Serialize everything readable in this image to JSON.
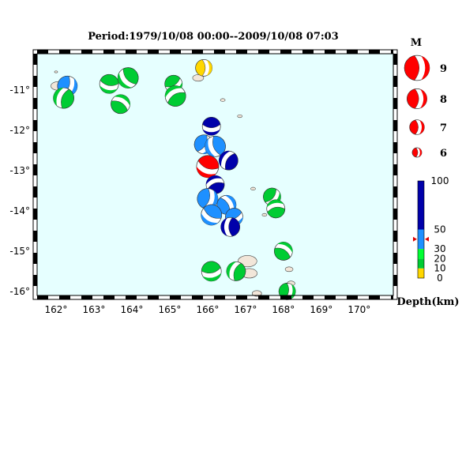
{
  "title": "Period:1979/10/08 00:00--2009/10/08 07:03",
  "map": {
    "lon_range": [
      161.5,
      170.9
    ],
    "lat_range": [
      -16.1,
      -10.1
    ],
    "ocean_color": "#e6ffff",
    "land_color": "#f2e6d9",
    "lon_ticks": [
      {
        "value": 162,
        "label": "162°"
      },
      {
        "value": 163,
        "label": "163°"
      },
      {
        "value": 164,
        "label": "164°"
      },
      {
        "value": 165,
        "label": "165°"
      },
      {
        "value": 166,
        "label": "166°"
      },
      {
        "value": 167,
        "label": "167°"
      },
      {
        "value": 168,
        "label": "168°"
      },
      {
        "value": 169,
        "label": "169°"
      },
      {
        "value": 170,
        "label": "170°"
      }
    ],
    "lat_ticks": [
      {
        "value": -11,
        "label": "-11°"
      },
      {
        "value": -12,
        "label": "-12°"
      },
      {
        "value": -13,
        "label": "-13°"
      },
      {
        "value": -14,
        "label": "-14°"
      },
      {
        "value": -15,
        "label": "-15°"
      },
      {
        "value": -16,
        "label": "-16°"
      }
    ]
  },
  "depth_colors": {
    "0-10": "#ffd700",
    "10-20": "#00cc33",
    "20-30": "#00ff33",
    "30-50": "#1e90ff",
    "50-100": "#0000aa"
  },
  "events": [
    {
      "lon": 162.3,
      "lat": -10.9,
      "mag": 6.7,
      "color": "#1e90ff",
      "rot": 20
    },
    {
      "lon": 162.2,
      "lat": -11.2,
      "mag": 6.8,
      "color": "#00cc33",
      "rot": 200
    },
    {
      "lon": 163.4,
      "lat": -10.85,
      "mag": 6.6,
      "color": "#00cc33",
      "rot": 100
    },
    {
      "lon": 163.9,
      "lat": -10.7,
      "mag": 6.8,
      "color": "#00cc33",
      "rot": 140
    },
    {
      "lon": 163.7,
      "lat": -11.35,
      "mag": 6.6,
      "color": "#00cc33",
      "rot": 300
    },
    {
      "lon": 165.1,
      "lat": -10.85,
      "mag": 6.4,
      "color": "#00cc33",
      "rot": 60
    },
    {
      "lon": 165.15,
      "lat": -11.15,
      "mag": 6.8,
      "color": "#00cc33",
      "rot": 240
    },
    {
      "lon": 165.9,
      "lat": -10.45,
      "mag": 6.3,
      "color": "#ffd700",
      "rot": 0
    },
    {
      "lon": 166.1,
      "lat": -11.9,
      "mag": 6.5,
      "color": "#0000aa",
      "rot": 90
    },
    {
      "lon": 165.9,
      "lat": -12.35,
      "mag": 6.6,
      "color": "#1e90ff",
      "rot": 30
    },
    {
      "lon": 166.2,
      "lat": -12.4,
      "mag": 6.8,
      "color": "#1e90ff",
      "rot": 160
    },
    {
      "lon": 166.55,
      "lat": -12.75,
      "mag": 6.6,
      "color": "#0000aa",
      "rot": 210
    },
    {
      "lon": 166.0,
      "lat": -12.9,
      "mag": 7.0,
      "color": "#ff0000",
      "rot": 110
    },
    {
      "lon": 166.2,
      "lat": -13.35,
      "mag": 6.5,
      "color": "#0000aa",
      "rot": 250
    },
    {
      "lon": 166.0,
      "lat": -13.7,
      "mag": 6.8,
      "color": "#1e90ff",
      "rot": 15
    },
    {
      "lon": 166.5,
      "lat": -13.85,
      "mag": 6.6,
      "color": "#1e90ff",
      "rot": 330
    },
    {
      "lon": 166.1,
      "lat": -14.1,
      "mag": 6.8,
      "color": "#1e90ff",
      "rot": 120
    },
    {
      "lon": 166.7,
      "lat": -14.15,
      "mag": 6.4,
      "color": "#1e90ff",
      "rot": 70
    },
    {
      "lon": 166.6,
      "lat": -14.4,
      "mag": 6.6,
      "color": "#0000aa",
      "rot": 180
    },
    {
      "lon": 167.7,
      "lat": -13.65,
      "mag": 6.4,
      "color": "#00cc33",
      "rot": 40
    },
    {
      "lon": 167.8,
      "lat": -13.95,
      "mag": 6.5,
      "color": "#00cc33",
      "rot": 260
    },
    {
      "lon": 168.0,
      "lat": -15.0,
      "mag": 6.5,
      "color": "#00cc33",
      "rot": 300
    },
    {
      "lon": 166.1,
      "lat": -15.5,
      "mag": 6.7,
      "color": "#00cc33",
      "rot": 80
    },
    {
      "lon": 166.75,
      "lat": -15.5,
      "mag": 6.6,
      "color": "#00cc33",
      "rot": 200
    },
    {
      "lon": 168.1,
      "lat": -16.0,
      "mag": 6.3,
      "color": "#00cc33",
      "rot": 10
    }
  ],
  "islands": [
    {
      "lon": 162.0,
      "lat": -10.55,
      "size": 2
    },
    {
      "lon": 162.05,
      "lat": -10.9,
      "size": 9
    },
    {
      "lon": 165.75,
      "lat": -10.7,
      "size": 7
    },
    {
      "lon": 166.4,
      "lat": -11.25,
      "size": 3
    },
    {
      "lon": 166.85,
      "lat": -11.65,
      "size": 3
    },
    {
      "lon": 167.2,
      "lat": -13.45,
      "size": 3
    },
    {
      "lon": 167.5,
      "lat": -14.1,
      "size": 3
    },
    {
      "lon": 167.05,
      "lat": -15.25,
      "size": 12
    },
    {
      "lon": 167.1,
      "lat": -15.55,
      "size": 10
    },
    {
      "lon": 168.15,
      "lat": -15.45,
      "size": 5
    },
    {
      "lon": 168.2,
      "lat": -15.8,
      "size": 5
    },
    {
      "lon": 167.3,
      "lat": -16.05,
      "size": 6
    }
  ],
  "legend": {
    "magnitude_title": "M",
    "magnitude_items": [
      {
        "mag": 9,
        "label": "9"
      },
      {
        "mag": 8,
        "label": "8"
      },
      {
        "mag": 7,
        "label": "7"
      },
      {
        "mag": 6,
        "label": "6"
      }
    ],
    "depth_title": "Depth(km)",
    "depth_scale": [
      {
        "from": 0,
        "to": 10,
        "color": "#ffd700"
      },
      {
        "from": 10,
        "to": 20,
        "color": "#00cc33"
      },
      {
        "from": 20,
        "to": 30,
        "color": "#00ff33"
      },
      {
        "from": 30,
        "to": 50,
        "color": "#1e90ff"
      },
      {
        "from": 50,
        "to": 100,
        "color": "#0000aa"
      }
    ],
    "depth_labels": [
      "100",
      "50",
      "30",
      "20",
      "10",
      "0"
    ],
    "depth_marker_km": 40
  }
}
